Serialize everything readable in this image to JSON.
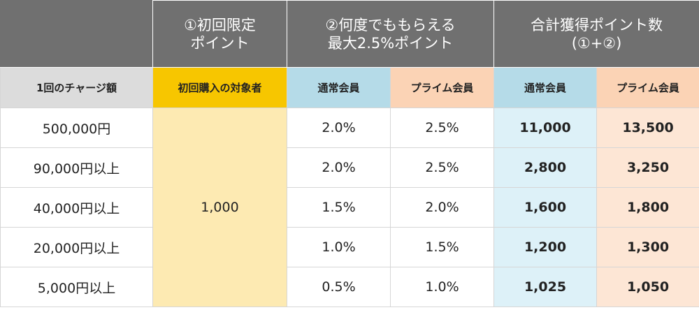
{
  "header": {
    "col1_line1": "①初回限定",
    "col1_line2": "ポイント",
    "col2_line1": "②何度でももらえる",
    "col2_line2": "最大2.5%ポイント",
    "col3_line1": "合計獲得ポイント数",
    "col3_line2": "(①+②)"
  },
  "subheader": {
    "charge": "1回のチャージ額",
    "first_target": "初回購入の対象者",
    "regular": "通常会員",
    "prime": "プライム会員",
    "total_regular": "通常会員",
    "total_prime": "プライム会員"
  },
  "colors": {
    "header_bg": "#707070",
    "first_target_bg": "#f7c600",
    "regular_bg": "#b5dbe8",
    "prime_bg": "#fbd3b5",
    "first_bonus_bg": "#fdeab2",
    "total_regular_bg": "#ddf1f8",
    "total_prime_bg": "#fde6d5"
  },
  "first_bonus": "1,000",
  "rows": [
    {
      "charge": "500,000円",
      "rate_regular": "2.0%",
      "rate_prime": "2.5%",
      "total_regular": "11,000",
      "total_prime": "13,500"
    },
    {
      "charge": "90,000円以上",
      "rate_regular": "2.0%",
      "rate_prime": "2.5%",
      "total_regular": "2,800",
      "total_prime": "3,250"
    },
    {
      "charge": "40,000円以上",
      "rate_regular": "1.5%",
      "rate_prime": "2.0%",
      "total_regular": "1,600",
      "total_prime": "1,800"
    },
    {
      "charge": "20,000円以上",
      "rate_regular": "1.0%",
      "rate_prime": "1.5%",
      "total_regular": "1,200",
      "total_prime": "1,300"
    },
    {
      "charge": "5,000円以上",
      "rate_regular": "0.5%",
      "rate_prime": "1.0%",
      "total_regular": "1,025",
      "total_prime": "1,050"
    }
  ]
}
